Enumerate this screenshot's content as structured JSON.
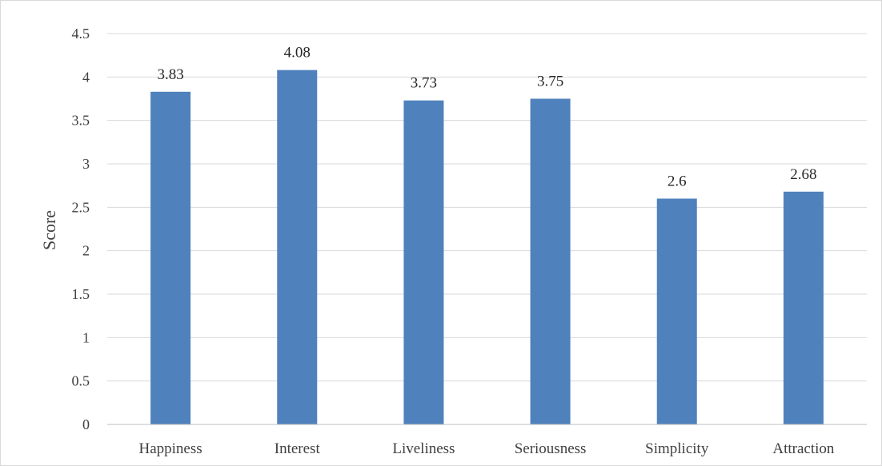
{
  "chart_data": {
    "type": "bar",
    "title": "",
    "xlabel": "",
    "ylabel": "Score",
    "categories": [
      "Happiness",
      "Interest",
      "Liveliness",
      "Seriousness",
      "Simplicity",
      "Attraction"
    ],
    "values": [
      3.83,
      4.08,
      3.73,
      3.75,
      2.6,
      2.68
    ],
    "data_labels": [
      "3.83",
      "4.08",
      "3.73",
      "3.75",
      "2.6",
      "2.68"
    ],
    "ylim": [
      0,
      4.5
    ],
    "yticks": [
      0,
      0.5,
      1,
      1.5,
      2,
      2.5,
      3,
      3.5,
      4,
      4.5
    ],
    "ytick_labels": [
      "0",
      "0.5",
      "1",
      "1.5",
      "2",
      "2.5",
      "3",
      "3.5",
      "4",
      "4.5"
    ],
    "grid": true,
    "legend": "none",
    "bar_color": "#4f81bd",
    "grid_color": "#d9d9d9"
  }
}
